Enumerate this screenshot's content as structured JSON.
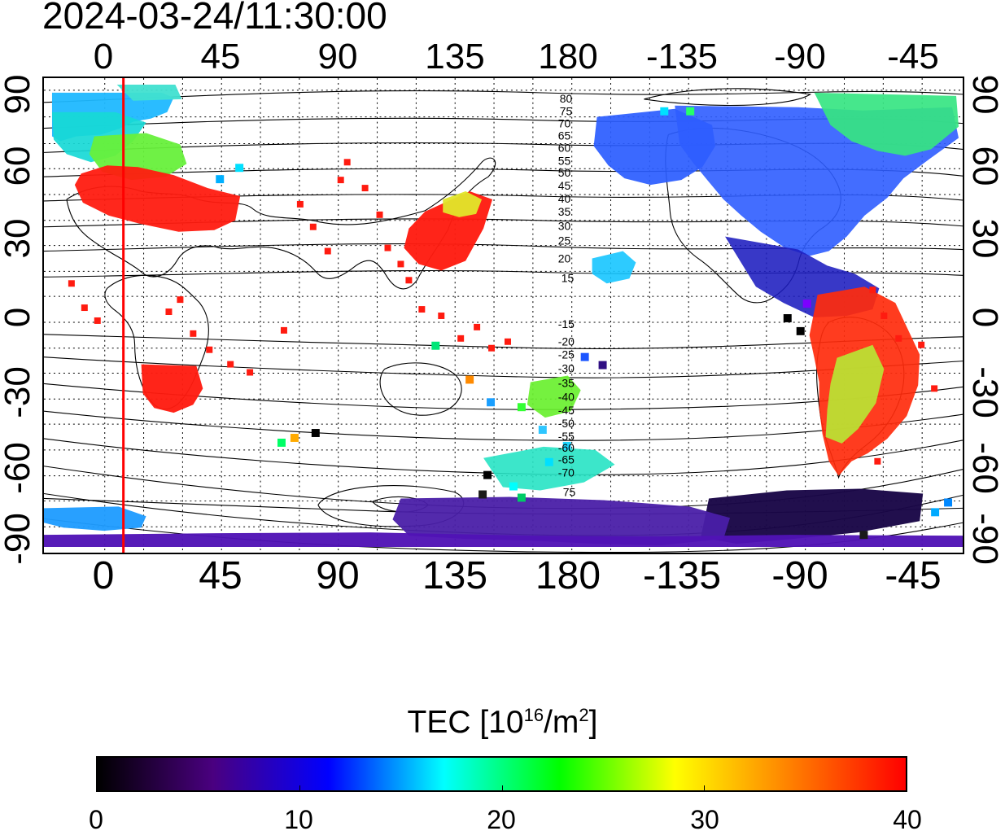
{
  "timestamp": "2024-03-24/11:30:00",
  "axes": {
    "lon_top": [
      "0",
      "45",
      "90",
      "135",
      "180",
      "-135",
      "-90",
      "-45"
    ],
    "lon_bottom": [
      "0",
      "45",
      "90",
      "135",
      "180",
      "-135",
      "-90",
      "-45"
    ],
    "lat_left": [
      "90",
      "60",
      "30",
      "0",
      "-30",
      "-60",
      "-90"
    ],
    "lat_right": [
      "90",
      "60",
      "30",
      "0",
      "-30",
      "-60",
      "-90"
    ]
  },
  "map": {
    "projection": "equirectangular",
    "longitude_range_deg": [
      -20,
      333
    ],
    "latitude_range_deg": [
      -90,
      90
    ],
    "grid": true,
    "terminator_longitude_deg": 8,
    "terminator_color": "#ff0000",
    "contour_labels_north": [
      "80",
      "75",
      "70",
      "65",
      "60",
      "55",
      "50",
      "45",
      "40",
      "35",
      "30",
      "25",
      "20",
      "15"
    ],
    "contour_labels_south": [
      "-15",
      "-20",
      "-25",
      "-30",
      "-35",
      "-40",
      "-45",
      "-50",
      "-55",
      "-60",
      "-65",
      "-70",
      "75"
    ]
  },
  "colorbar": {
    "title_prefix": "TEC  [10",
    "title_exp1": "16",
    "title_mid": "/m",
    "title_exp2": "2",
    "title_suffix": "]",
    "min": 0,
    "max": 40,
    "tick_labels": [
      "0",
      "10",
      "20",
      "30",
      "40"
    ],
    "colors": [
      "#000000",
      "#4a0080",
      "#0000ff",
      "#00ffff",
      "#00ff00",
      "#ffff00",
      "#ff8000",
      "#ff0000"
    ]
  }
}
